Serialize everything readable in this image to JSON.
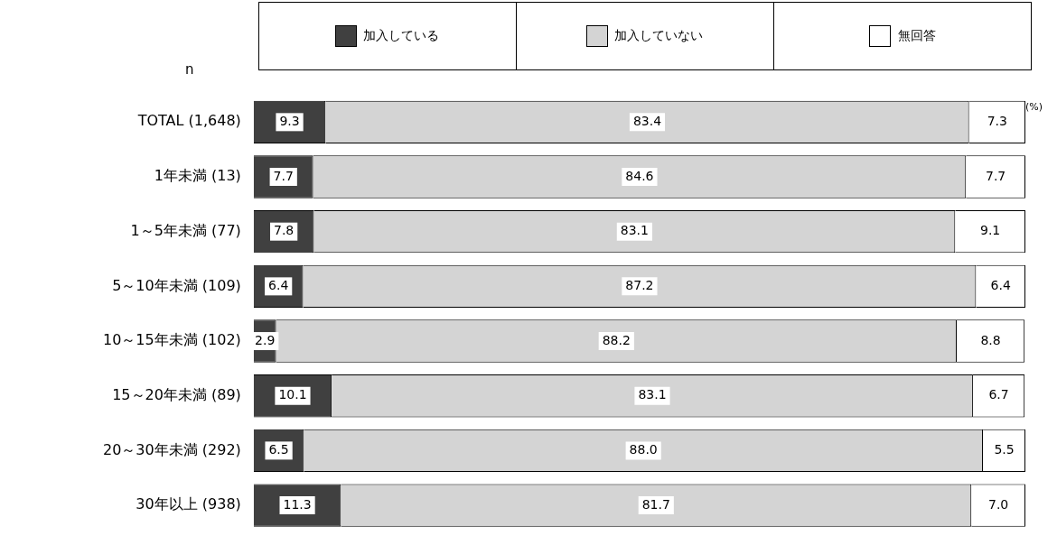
{
  "chart_data": {
    "type": "bar",
    "orientation": "horizontal",
    "stacked": true,
    "categories": [
      "TOTAL (1,648)",
      "1年未満 (13)",
      "1～5年未満 (77)",
      "5～10年未満 (109)",
      "10～15年未満 (102)",
      "15～20年未満 (89)",
      "20～30年未満 (292)",
      "30年以上 (938)"
    ],
    "series": [
      {
        "name": "加入している",
        "color": "#404040",
        "values": [
          9.3,
          7.7,
          7.8,
          6.4,
          2.9,
          10.1,
          6.5,
          11.3
        ],
        "value_labels": [
          "9.3",
          "7.7",
          "7.8",
          "6.4",
          "2.9",
          "10.1",
          "6.5",
          "11.3"
        ]
      },
      {
        "name": "加入していない",
        "color": "#d4d4d4",
        "values": [
          83.4,
          84.6,
          83.1,
          87.2,
          88.2,
          83.1,
          88.0,
          81.7
        ],
        "value_labels": [
          "83.4",
          "84.6",
          "83.1",
          "87.2",
          "88.2",
          "83.1",
          "88.0",
          "81.7"
        ]
      },
      {
        "name": "無回答",
        "color": "#ffffff",
        "values": [
          7.3,
          7.7,
          9.1,
          6.4,
          8.8,
          6.7,
          5.5,
          7.0
        ],
        "value_labels": [
          "7.3",
          "7.7",
          "9.1",
          "6.4",
          "8.8",
          "6.7",
          "5.5",
          "7.0"
        ]
      }
    ],
    "xlim": [
      0,
      100
    ],
    "tick_labels": "y",
    "grid": false,
    "legend": "top",
    "annotations": [
      "n",
      "(%)"
    ]
  }
}
